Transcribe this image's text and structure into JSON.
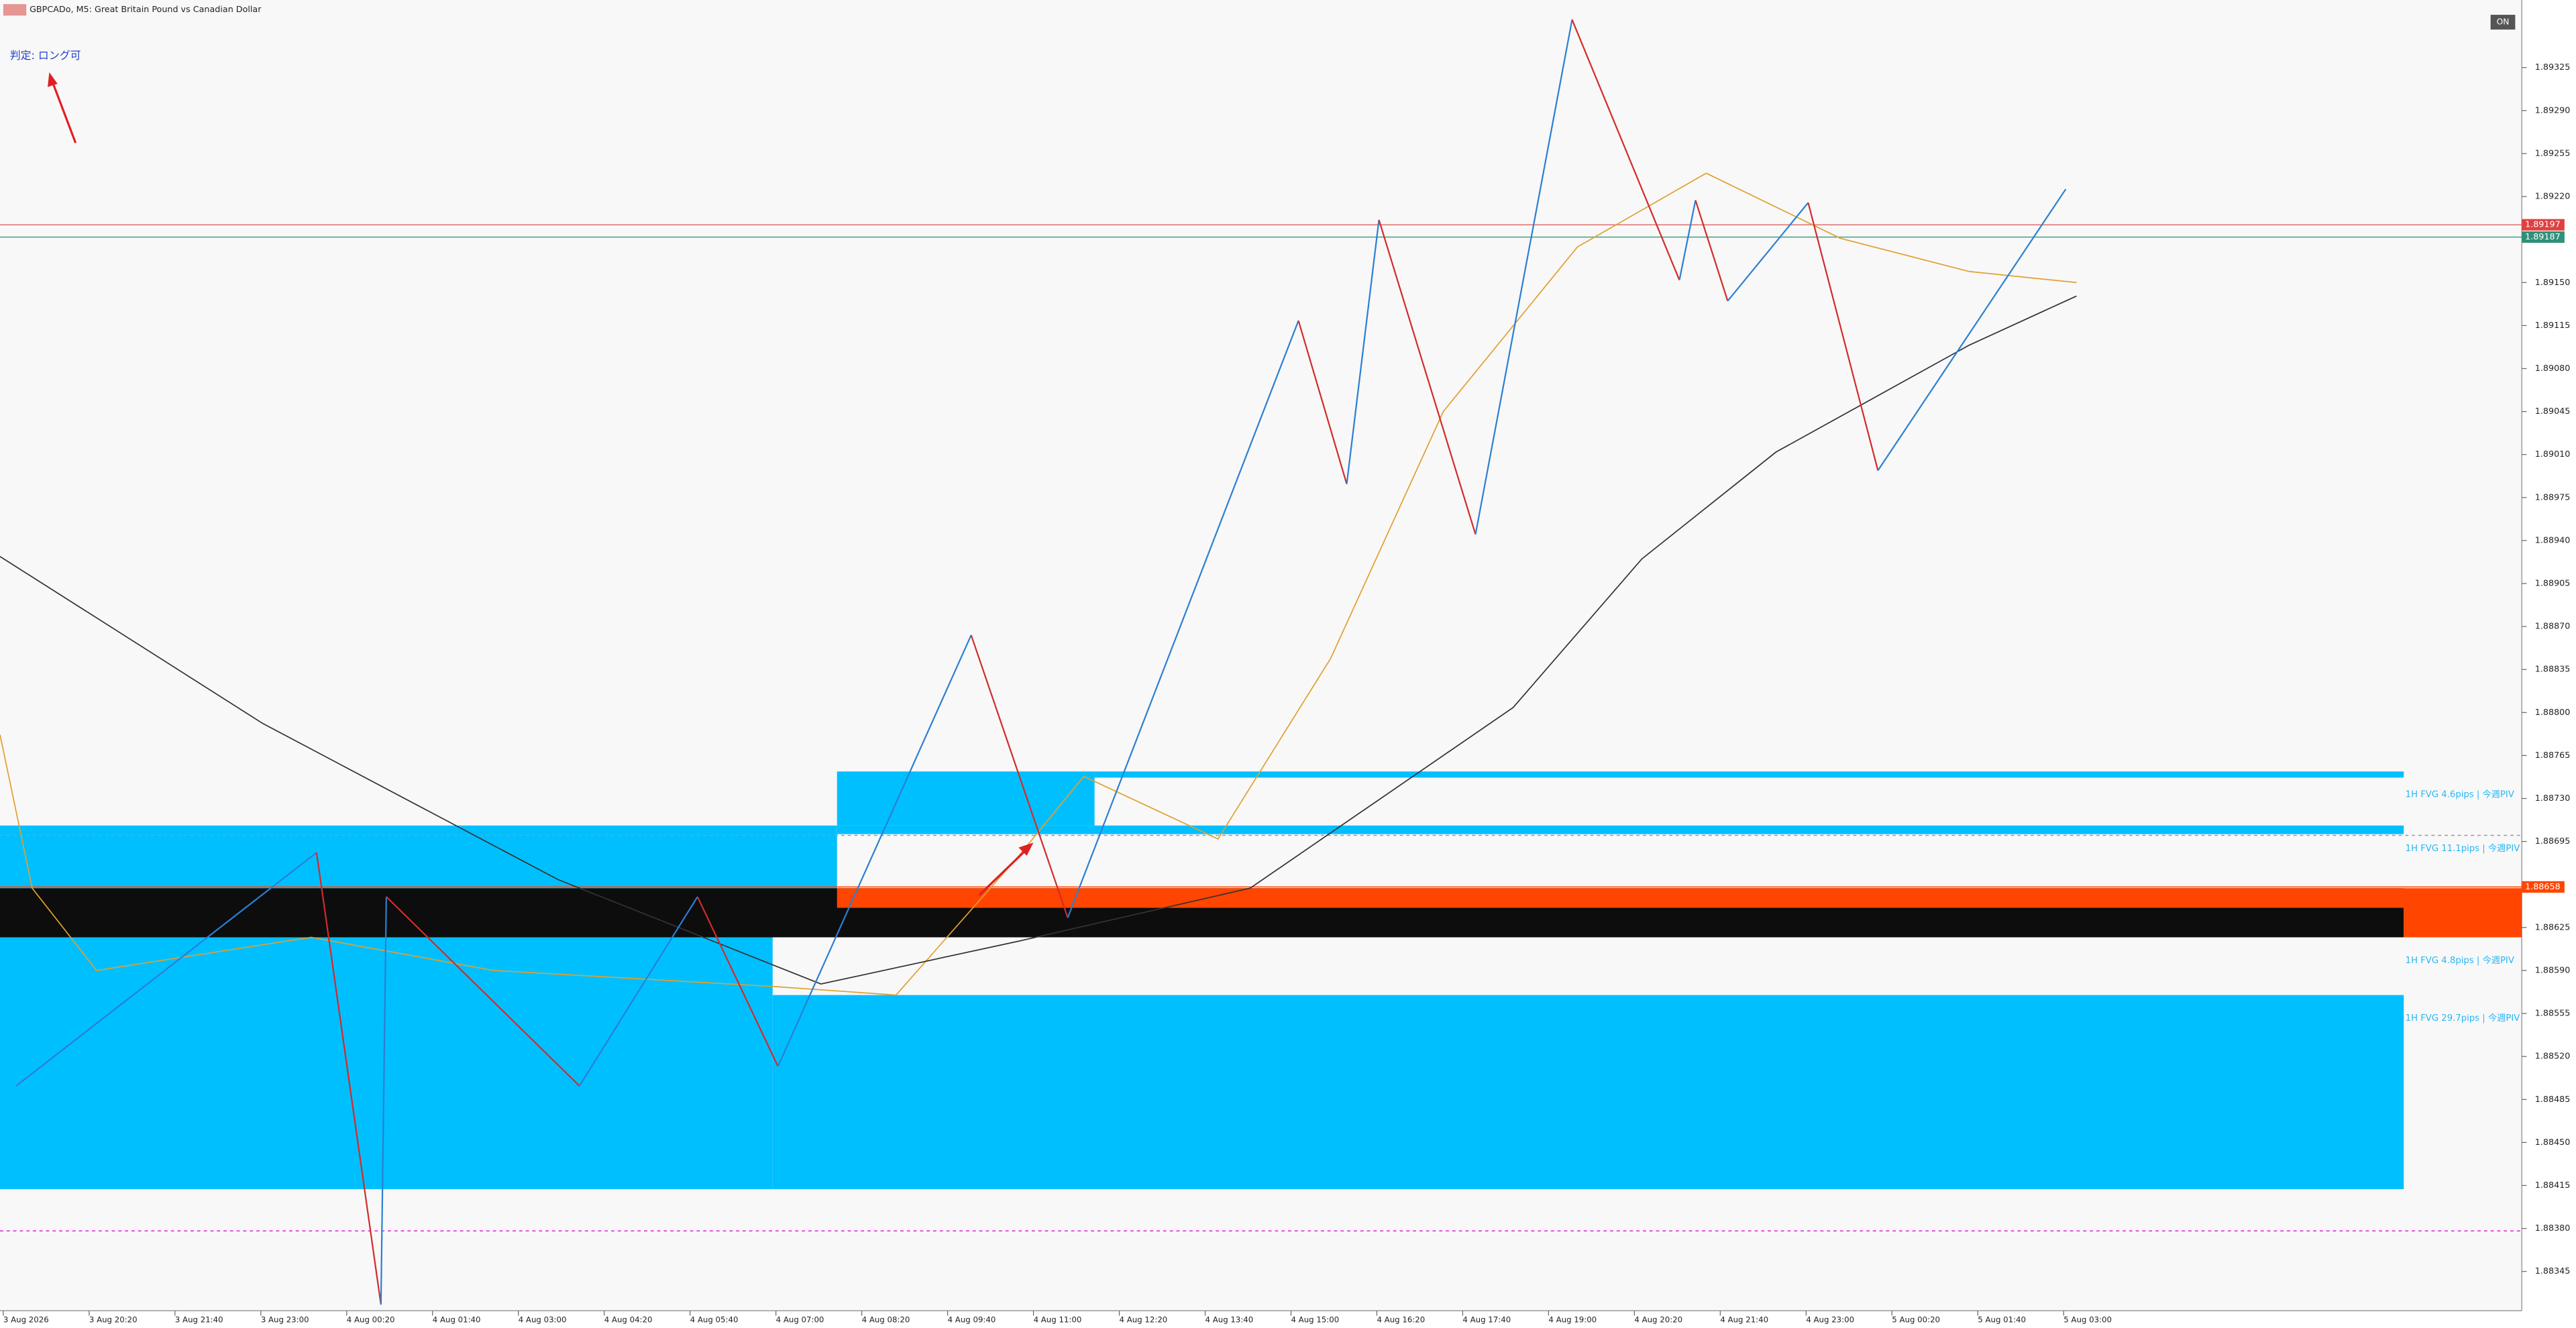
{
  "header": {
    "symbol": "GBPCADo, M5:  Great Britain Pound vs Canadian Dollar",
    "verdict": "判定: ロング可",
    "button": "ON"
  },
  "chart_data": {
    "type": "line",
    "xlim": [
      0,
      470
    ],
    "ylim": [
      1.88313,
      1.8938
    ],
    "xticks": [
      {
        "value": 0,
        "label": "3 Aug 2026"
      },
      {
        "value": 16,
        "label": "3 Aug 20:20"
      },
      {
        "value": 32,
        "label": "3 Aug 21:40"
      },
      {
        "value": 48,
        "label": "3 Aug 23:00"
      },
      {
        "value": 64,
        "label": "4 Aug 00:20"
      },
      {
        "value": 80,
        "label": "4 Aug 01:40"
      },
      {
        "value": 96,
        "label": "4 Aug 03:00"
      },
      {
        "value": 112,
        "label": "4 Aug 04:20"
      },
      {
        "value": 128,
        "label": "4 Aug 05:40"
      },
      {
        "value": 144,
        "label": "4 Aug 07:00"
      },
      {
        "value": 160,
        "label": "4 Aug 08:20"
      },
      {
        "value": 176,
        "label": "4 Aug 09:40"
      },
      {
        "value": 192,
        "label": "4 Aug 11:00"
      },
      {
        "value": 208,
        "label": "4 Aug 12:20"
      },
      {
        "value": 224,
        "label": "4 Aug 13:40"
      },
      {
        "value": 240,
        "label": "4 Aug 15:00"
      },
      {
        "value": 256,
        "label": "4 Aug 16:20"
      },
      {
        "value": 272,
        "label": "4 Aug 17:40"
      },
      {
        "value": 288,
        "label": "4 Aug 19:00"
      },
      {
        "value": 304,
        "label": "4 Aug 20:20"
      },
      {
        "value": 320,
        "label": "4 Aug 21:40"
      },
      {
        "value": 336,
        "label": "4 Aug 23:00"
      },
      {
        "value": 352,
        "label": "5 Aug 00:20"
      },
      {
        "value": 368,
        "label": "5 Aug 01:40"
      },
      {
        "value": 384,
        "label": "5 Aug 03:00"
      }
    ],
    "yticks": [
      1.89325,
      {
        "value": 1.8929,
        "label": "1.89290"
      },
      1.89255,
      {
        "value": 1.8922,
        "label": "1.89220"
      },
      {
        "value": 1.8915,
        "label": "1.89150"
      },
      1.89115,
      {
        "value": 1.8908,
        "label": "1.89080"
      },
      1.89045,
      {
        "value": 1.8901,
        "label": "1.89010"
      },
      1.88975,
      {
        "value": 1.8894,
        "label": "1.88940"
      },
      1.88905,
      {
        "value": 1.8887,
        "label": "1.88870"
      },
      1.88835,
      {
        "value": 1.888,
        "label": "1.88800"
      },
      1.88765,
      {
        "value": 1.8873,
        "label": "1.88730"
      },
      1.88695,
      1.88625,
      {
        "value": 1.8859,
        "label": "1.88590"
      },
      1.88555,
      {
        "value": 1.8852,
        "label": "1.88520"
      },
      1.88485,
      {
        "value": 1.8845,
        "label": "1.88450"
      },
      1.88415,
      {
        "value": 1.8838,
        "label": "1.88380"
      },
      1.88345
    ],
    "zones": [
      {
        "x": [
          0,
          156
        ],
        "top": 1.88708,
        "bottom": 1.88657,
        "color": "#00bfff"
      },
      {
        "x": [
          156,
          204
        ],
        "top": 1.88752,
        "bottom": 1.88708,
        "color": "#00bfff"
      },
      {
        "x": [
          204,
          448
        ],
        "top": 1.88752,
        "bottom": 1.88747,
        "color": "#00bfff",
        "label": "1H FVG 4.6pips | 今週PIV"
      },
      {
        "x": [
          156,
          448
        ],
        "top": 1.88708,
        "bottom": 1.88701,
        "color": "#00bfff",
        "label": "1H FVG 11.1pips | 今週PIV"
      },
      {
        "x": [
          0,
          448
        ],
        "top": 1.88657,
        "bottom": 1.88617,
        "color": "#0d0d0d"
      },
      {
        "x": [
          156,
          470
        ],
        "top": 1.88657,
        "bottom": 1.88641,
        "color": "#ff4500"
      },
      {
        "x": [
          448,
          470
        ],
        "top": 1.88641,
        "bottom": 1.88617,
        "color": "#ff4500"
      },
      {
        "x": [
          0,
          144
        ],
        "top": 1.88617,
        "bottom": 1.88412,
        "color": "#00bfff",
        "label": "1H FVG 4.8pips | 今週PIV"
      },
      {
        "x": [
          144,
          448
        ],
        "top": 1.8857,
        "bottom": 1.88412,
        "color": "#00bfff",
        "label": "1H FVG 29.7pips | 今週PIV"
      }
    ],
    "series": [
      {
        "color": "#e0a030",
        "x": [
          0,
          6,
          18,
          58,
          92,
          144,
          167,
          190,
          202,
          227,
          248,
          269,
          294,
          318,
          343,
          367,
          387
        ],
        "values": [
          1.88782,
          1.88657,
          1.8859,
          1.88617,
          1.8859,
          1.88577,
          1.8857,
          1.88684,
          1.88748,
          1.88697,
          1.88844,
          1.89045,
          1.89179,
          1.89239,
          1.89186,
          1.89159,
          1.8915
        ]
      },
      {
        "color": "#333333",
        "x": [
          0,
          49,
          104,
          153,
          190,
          233,
          282,
          306,
          331,
          367,
          387
        ],
        "values": [
          1.88927,
          1.88791,
          1.88664,
          1.88579,
          1.88614,
          1.88657,
          1.88804,
          1.88925,
          1.89012,
          1.89099,
          1.89139
        ]
      }
    ],
    "zigzag": {
      "up_color": "#2a7fd4",
      "down_color": "#d42a2a",
      "x": [
        3,
        59,
        71,
        72,
        108,
        130,
        145,
        181,
        199,
        242,
        251,
        257,
        275,
        293,
        313,
        316,
        322,
        337,
        350,
        385
      ],
      "values": [
        1.88496,
        1.88686,
        1.88318,
        1.8865,
        1.88496,
        1.8865,
        1.88512,
        1.88863,
        1.88633,
        1.89119,
        1.88986,
        1.89201,
        1.88945,
        1.89364,
        1.89152,
        1.89217,
        1.89135,
        1.89215,
        1.88997,
        1.89226
      ]
    },
    "levels": [
      {
        "value": 1.89197,
        "color": "#e06060",
        "tag_color": "#e04040"
      },
      {
        "value": 1.89187,
        "color": "#40a080",
        "tag_color": "#30907a"
      },
      {
        "value": 1.88658,
        "color": "#ff4500",
        "tag_color": "#ff4500"
      },
      {
        "value": 1.887,
        "color": "#999999",
        "dash": true
      },
      {
        "value": 1.88378,
        "color": "#e020e0",
        "dash": true
      }
    ]
  }
}
